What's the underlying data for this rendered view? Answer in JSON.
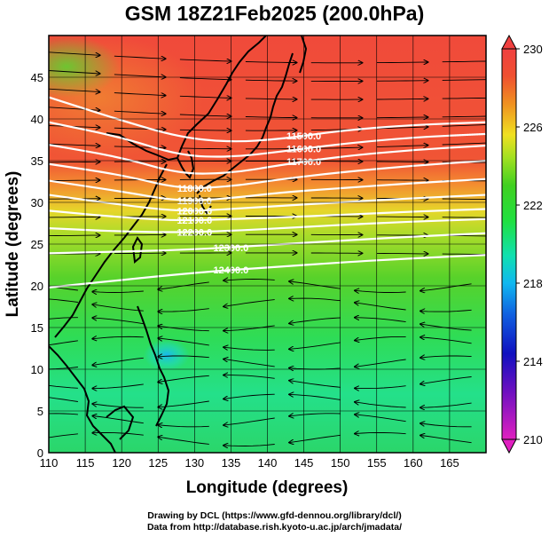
{
  "title": "GSM 18Z21Feb2025 (200.0hPa)",
  "credits": {
    "line1": "Drawing by DCL (https://www.gfd-dennou.org/library/dcl/)",
    "line2": "Data from http://database.rish.kyoto-u.ac.jp/arch/jmadata/"
  },
  "chart_data": {
    "type": "heatmap",
    "title": "GSM 18Z21Feb2025 (200.0hPa)",
    "xlabel": "Longitude (degrees)",
    "ylabel": "Latitude  (degrees)",
    "xlim": [
      110,
      170
    ],
    "ylim": [
      0,
      50
    ],
    "xticks": [
      110,
      115,
      120,
      125,
      130,
      135,
      140,
      145,
      150,
      155,
      160,
      165
    ],
    "yticks": [
      0,
      5,
      10,
      15,
      20,
      25,
      30,
      35,
      40,
      45
    ],
    "grid": true,
    "colorbar": {
      "min": 210,
      "max": 230,
      "ticks": [
        210,
        214,
        218,
        222,
        226,
        230
      ],
      "placement": "right"
    },
    "contours": [
      {
        "label": "11500.0",
        "points": [
          [
            110,
            42.6
          ],
          [
            120,
            39.8
          ],
          [
            128,
            37.8
          ],
          [
            135,
            37.2
          ],
          [
            142,
            37.6
          ],
          [
            150,
            38.6
          ],
          [
            160,
            39.3
          ],
          [
            170,
            39.6
          ]
        ]
      },
      {
        "label": "11600.0",
        "points": [
          [
            110,
            39.6
          ],
          [
            120,
            37.8
          ],
          [
            128,
            35.6
          ],
          [
            135,
            35.4
          ],
          [
            142,
            36.1
          ],
          [
            150,
            37.0
          ],
          [
            160,
            37.8
          ],
          [
            170,
            38.2
          ]
        ]
      },
      {
        "label": "11700.0",
        "points": [
          [
            110,
            36.9
          ],
          [
            120,
            35.4
          ],
          [
            128,
            33.4
          ],
          [
            135,
            33.5
          ],
          [
            142,
            34.5
          ],
          [
            150,
            35.5
          ],
          [
            160,
            36.3
          ],
          [
            170,
            36.8
          ]
        ]
      },
      {
        "label": "11800.0",
        "points": [
          [
            110,
            34.6
          ],
          [
            120,
            33.3
          ],
          [
            128,
            31.6
          ],
          [
            135,
            31.9
          ],
          [
            142,
            32.8
          ],
          [
            150,
            33.6
          ],
          [
            160,
            34.4
          ],
          [
            170,
            35.0
          ]
        ]
      },
      {
        "label": "11900.0",
        "points": [
          [
            110,
            32.6
          ],
          [
            120,
            31.3
          ],
          [
            128,
            30.1
          ],
          [
            135,
            30.5
          ],
          [
            142,
            31.2
          ],
          [
            150,
            31.7
          ],
          [
            160,
            32.3
          ],
          [
            170,
            32.8
          ]
        ]
      },
      {
        "label": "12000.0",
        "points": [
          [
            110,
            30.9
          ],
          [
            120,
            29.7
          ],
          [
            128,
            28.9
          ],
          [
            135,
            29.2
          ],
          [
            142,
            29.6
          ],
          [
            150,
            30.0
          ],
          [
            160,
            30.5
          ],
          [
            170,
            30.9
          ]
        ]
      },
      {
        "label": "12100.0",
        "points": [
          [
            110,
            29.0
          ],
          [
            120,
            28.2
          ],
          [
            128,
            27.8
          ],
          [
            135,
            28.0
          ],
          [
            142,
            28.2
          ],
          [
            150,
            28.5
          ],
          [
            160,
            28.9
          ],
          [
            170,
            29.2
          ]
        ]
      },
      {
        "label": "12200.0",
        "points": [
          [
            110,
            26.9
          ],
          [
            120,
            26.5
          ],
          [
            128,
            26.4
          ],
          [
            135,
            26.6
          ],
          [
            142,
            26.9
          ],
          [
            150,
            27.3
          ],
          [
            160,
            27.7
          ],
          [
            170,
            28.0
          ]
        ]
      },
      {
        "label": "12300.0",
        "points": [
          [
            110,
            23.9
          ],
          [
            120,
            24.1
          ],
          [
            128,
            24.3
          ],
          [
            135,
            24.6
          ],
          [
            142,
            25.0
          ],
          [
            150,
            25.4
          ],
          [
            160,
            25.9
          ],
          [
            170,
            26.3
          ]
        ]
      },
      {
        "label": "12400.0",
        "points": [
          [
            110,
            19.8
          ],
          [
            120,
            20.7
          ],
          [
            128,
            21.4
          ],
          [
            135,
            21.9
          ],
          [
            142,
            22.3
          ],
          [
            150,
            22.8
          ],
          [
            160,
            23.3
          ],
          [
            170,
            23.7
          ]
        ]
      }
    ]
  }
}
